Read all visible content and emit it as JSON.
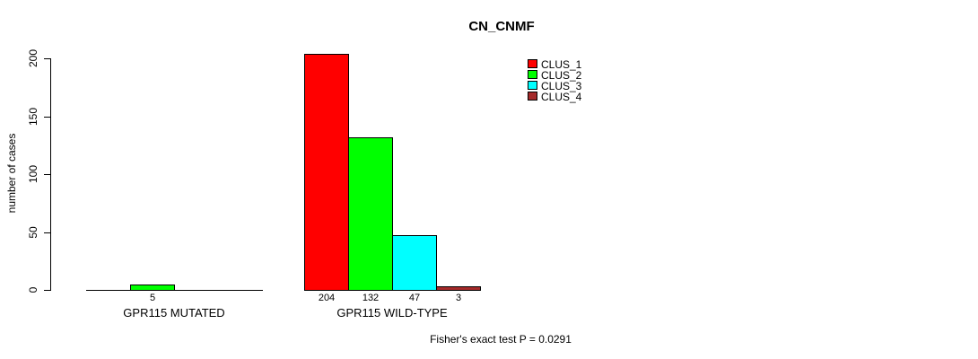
{
  "chart_data": {
    "type": "bar",
    "title": "CN_CNMF",
    "ylabel": "number of cases",
    "xlabel": "",
    "ylim": [
      0,
      200
    ],
    "yticks": [
      "0",
      "50",
      "100",
      "150",
      "200"
    ],
    "grid": false,
    "legend_position": "inside-top-right",
    "groups": [
      "GPR115 MUTATED",
      "GPR115 WILD-TYPE"
    ],
    "series": [
      {
        "name": "CLUS_1",
        "color": "#ff0000",
        "values": [
          0,
          204
        ]
      },
      {
        "name": "CLUS_2",
        "color": "#00ff00",
        "values": [
          5,
          132
        ]
      },
      {
        "name": "CLUS_3",
        "color": "#00ffff",
        "values": [
          0,
          47
        ]
      },
      {
        "name": "CLUS_4",
        "color": "#a52a2a",
        "values": [
          0,
          3
        ]
      }
    ],
    "visible_bar_value_labels": [
      "5",
      "204",
      "132",
      "47",
      "3"
    ],
    "annotation": "Fisher's exact test P = 0.0291",
    "colors": {
      "background": "#ffffff",
      "axis": "#000000",
      "text": "#000000",
      "bar_border": "#000000"
    }
  }
}
